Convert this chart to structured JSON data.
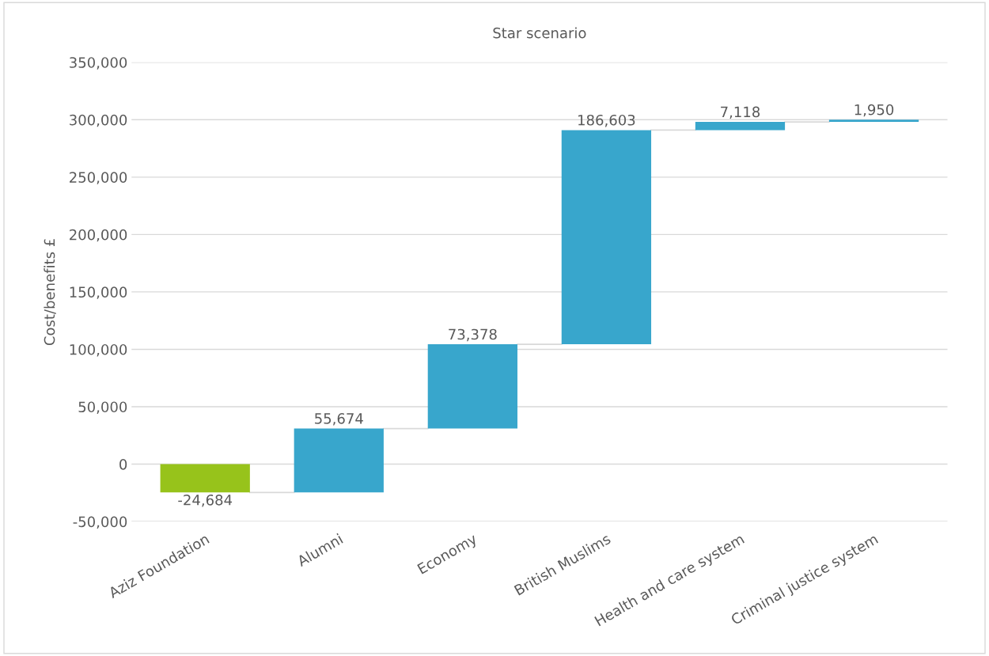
{
  "chart_data": {
    "type": "bar",
    "title": "Star scenario",
    "ylabel": "Cost/benefits £",
    "categories": [
      "Aziz Foundation",
      "Alumni",
      "Economy",
      "British Muslims",
      "Health and care system",
      "Criminal justice system"
    ],
    "values": [
      -24684,
      55674,
      73378,
      186603,
      7118,
      1950
    ],
    "base": [
      0,
      -24684,
      30990,
      104368,
      290971,
      298089
    ],
    "colors": [
      "#97c31b",
      "#38a6cc",
      "#38a6cc",
      "#38a6cc",
      "#38a6cc",
      "#38a6cc"
    ],
    "value_labels": [
      "-24,684",
      "55,674",
      "73,378",
      "186,603",
      "7,118",
      "1,950"
    ],
    "ylim": [
      -50000,
      350000
    ],
    "yticks": [
      {
        "value": -50000,
        "label": "-50,000"
      },
      {
        "value": 0,
        "label": "0"
      },
      {
        "value": 50000,
        "label": "50,000"
      },
      {
        "value": 100000,
        "label": "100,000"
      },
      {
        "value": 150000,
        "label": "150,000"
      },
      {
        "value": 200000,
        "label": "200,000"
      },
      {
        "value": 250000,
        "label": "250,000"
      },
      {
        "value": 300000,
        "label": "300,000"
      },
      {
        "value": 350000,
        "label": "350,000"
      }
    ],
    "grid": "y"
  }
}
